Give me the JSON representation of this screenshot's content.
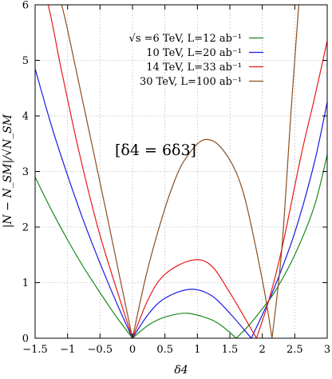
{
  "chart_data": {
    "type": "line",
    "xlabel": "δ4",
    "ylabel": "|N − N_SM|/√N_SM",
    "xlim": [
      -1.5,
      3
    ],
    "ylim": [
      0,
      6
    ],
    "xticks": [
      -1.5,
      -1,
      -0.5,
      0,
      0.5,
      1,
      1.5,
      2,
      2.5,
      3
    ],
    "xtick_labels": [
      "−1.5",
      "−1",
      "−0.5",
      "0",
      "0.5",
      "1",
      "1.5",
      "2",
      "2.5",
      "3"
    ],
    "yticks": [
      0,
      1,
      2,
      3,
      4,
      5,
      6
    ],
    "ytick_labels": [
      "0",
      "1",
      "2",
      "3",
      "4",
      "5",
      "6"
    ],
    "grid": true,
    "legend_position": "top-right",
    "annotation": "[δ4 = 6δ3]",
    "series": [
      {
        "name": "√s =6 TeV, L=12 ab⁻¹",
        "color": "#1a8a1a",
        "x": [
          -1.5,
          -1.25,
          -1,
          -0.75,
          -0.5,
          -0.25,
          0,
          0.25,
          0.5,
          0.84,
          1.2,
          1.4,
          1.6,
          1.8,
          2,
          2.2,
          2.5,
          2.8,
          3
        ],
        "y": [
          2.9,
          2.31,
          1.77,
          1.27,
          0.82,
          0.39,
          0,
          0.24,
          0.38,
          0.45,
          0.34,
          0.2,
          0,
          0.24,
          0.53,
          0.85,
          1.5,
          2.37,
          3.3
        ]
      },
      {
        "name": "10 TeV, L=20 ab⁻¹",
        "color": "#1a1ae6",
        "x": [
          -1.5,
          -1.25,
          -1,
          -0.75,
          -0.5,
          -0.25,
          0,
          0.25,
          0.5,
          0.88,
          1.2,
          1.5,
          1.83,
          2,
          2.2,
          2.5,
          2.8,
          3
        ],
        "y": [
          4.85,
          3.83,
          2.93,
          2.1,
          1.35,
          0.65,
          0,
          0.44,
          0.72,
          0.88,
          0.78,
          0.45,
          0,
          0.42,
          0.95,
          1.9,
          3.15,
          4.25
        ]
      },
      {
        "name": "14 TeV, L=33 ab⁻¹",
        "color": "#e61a1a",
        "x": [
          -1.5,
          -1.3,
          -1.1,
          -0.9,
          -0.7,
          -0.5,
          -0.25,
          0,
          0.25,
          0.5,
          0.9,
          1.2,
          1.5,
          1.91,
          2.1,
          2.3,
          2.6,
          2.8,
          3
        ],
        "y": [
          6.6,
          6.0,
          4.85,
          3.75,
          2.75,
          1.85,
          0.9,
          0,
          0.72,
          1.15,
          1.4,
          1.32,
          0.82,
          0,
          0.68,
          1.6,
          3.3,
          4.3,
          5.35
        ]
      },
      {
        "name": "30 TeV, L=100 ab⁻¹",
        "color": "#8b4f1f",
        "x": [
          -1.1,
          -1.0,
          -0.8,
          -0.6,
          -0.4,
          -0.2,
          0,
          0.2,
          0.4,
          0.6,
          0.8,
          1.1,
          1.4,
          1.7,
          2.0,
          2.15,
          2.3,
          2.45,
          2.6
        ],
        "y": [
          6.05,
          5.55,
          4.45,
          3.35,
          2.25,
          1.12,
          0,
          1.08,
          1.95,
          2.68,
          3.2,
          3.57,
          3.38,
          2.65,
          1.05,
          0,
          1.6,
          4.2,
          6.6
        ]
      }
    ]
  }
}
